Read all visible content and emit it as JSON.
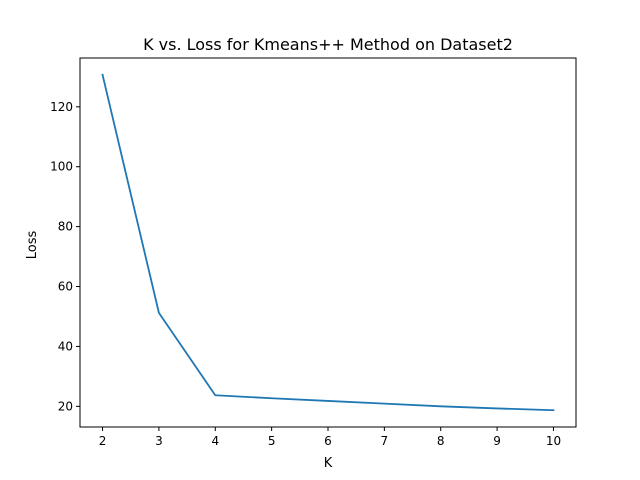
{
  "chart_data": {
    "type": "line",
    "title": "K vs. Loss for Kmeans++ Method on Dataset2",
    "xlabel": "K",
    "ylabel": "Loss",
    "x": [
      2,
      3,
      4,
      5,
      6,
      7,
      8,
      9,
      10
    ],
    "series": [
      {
        "values": [
          130.7,
          51.2,
          23.7,
          22.7,
          21.8,
          20.9,
          20.0,
          19.3,
          18.7
        ],
        "color": "#1f77b4"
      }
    ],
    "xlim": [
      1.6,
      10.4
    ],
    "ylim": [
      13.1,
      136.3
    ],
    "xticks": [
      2,
      3,
      4,
      5,
      6,
      7,
      8,
      9,
      10
    ],
    "yticks": [
      20,
      40,
      60,
      80,
      100,
      120
    ],
    "grid": false,
    "legend": "none"
  }
}
